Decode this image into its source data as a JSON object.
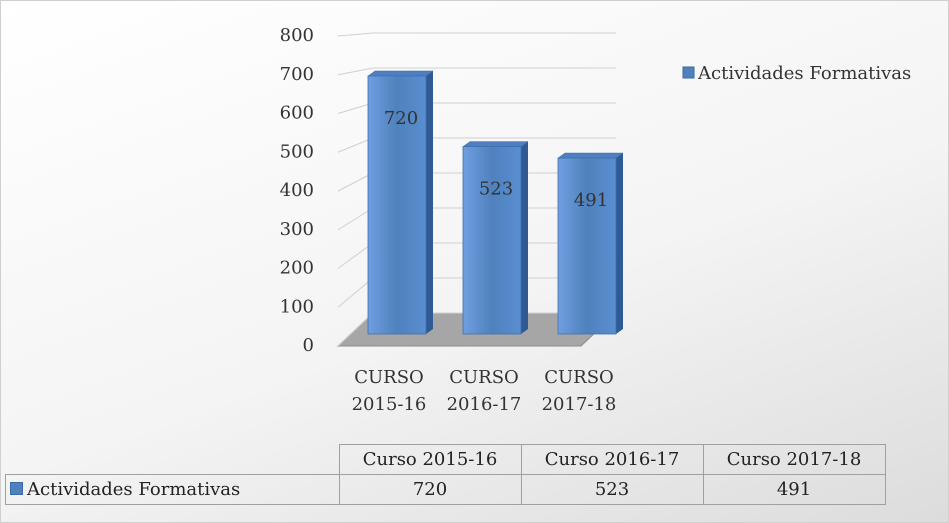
{
  "chart_data": {
    "type": "bar",
    "categories": [
      "CURSO 2015-16",
      "CURSO 2016-17",
      "CURSO 2017-18"
    ],
    "series": [
      {
        "name": "Actividades Formativas",
        "color": "#4f81bd",
        "values": [
          720,
          523,
          491
        ]
      }
    ],
    "ylim": [
      0,
      800
    ],
    "yticks": [
      0,
      100,
      200,
      300,
      400,
      500,
      600,
      700,
      800
    ],
    "grid": true,
    "legend": "right",
    "data_table": {
      "columns": [
        "Curso 2015-16",
        "Curso 2016-17",
        "Curso 2017-18"
      ]
    }
  }
}
